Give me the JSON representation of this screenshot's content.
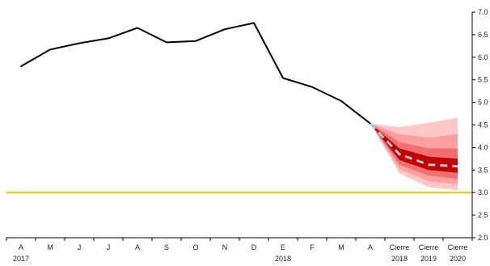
{
  "chart_data": {
    "type": "line",
    "title": "",
    "xlabel": "",
    "ylabel": "",
    "ylim": [
      2.0,
      7.0
    ],
    "y_axis_position": "right",
    "yticks": [
      "2.0",
      "2.5",
      "3.0",
      "3.5",
      "4.0",
      "4.5",
      "5.0",
      "5.5",
      "6.0",
      "6.5",
      "7.0"
    ],
    "categories": [
      "A",
      "M",
      "J",
      "J",
      "A",
      "S",
      "O",
      "N",
      "D",
      "E",
      "F",
      "M",
      "A",
      "Cierre",
      "Cierre",
      "Cierre"
    ],
    "year_labels": [
      {
        "index": 0,
        "text": "2017"
      },
      {
        "index": 9,
        "text": "2018"
      },
      {
        "index": 13,
        "text": "2018"
      },
      {
        "index": 14,
        "text": "2019"
      },
      {
        "index": 15,
        "text": "2020"
      }
    ],
    "series": [
      {
        "values": [
          5.8,
          6.17,
          6.31,
          6.42,
          6.65,
          6.33,
          6.36,
          6.62,
          6.76,
          5.54,
          5.34,
          5.03,
          4.53,
          null,
          null,
          null
        ],
        "color": "#000000",
        "style": "solid"
      },
      {
        "values": [
          null,
          null,
          null,
          null,
          null,
          null,
          null,
          null,
          null,
          null,
          null,
          null,
          4.53,
          3.85,
          3.62,
          3.58
        ],
        "color": "#a9c8d8",
        "style": "dashed"
      },
      {
        "values": [
          3.0,
          3.0,
          3.0,
          3.0,
          3.0,
          3.0,
          3.0,
          3.0,
          3.0,
          3.0,
          3.0,
          3.0,
          3.0,
          3.0,
          3.0,
          3.0
        ],
        "color": "#f2c200",
        "style": "solid"
      }
    ],
    "fan_chart": {
      "start_index": 12,
      "start_value": 4.53,
      "bands": [
        {
          "lower": [
            3.42,
            3.12,
            3.05
          ],
          "upper": [
            4.45,
            4.55,
            4.66
          ],
          "color": "#ffc8c8"
        },
        {
          "lower": [
            3.52,
            3.25,
            3.18
          ],
          "upper": [
            4.3,
            4.22,
            4.3
          ],
          "color": "#ffa0a0"
        },
        {
          "lower": [
            3.62,
            3.38,
            3.3
          ],
          "upper": [
            4.12,
            3.98,
            3.98
          ],
          "color": "#f26f6f"
        },
        {
          "lower": [
            3.72,
            3.5,
            3.44
          ],
          "upper": [
            3.98,
            3.8,
            3.75
          ],
          "color": "#c00000"
        }
      ]
    },
    "grid": false,
    "legend": "none"
  }
}
